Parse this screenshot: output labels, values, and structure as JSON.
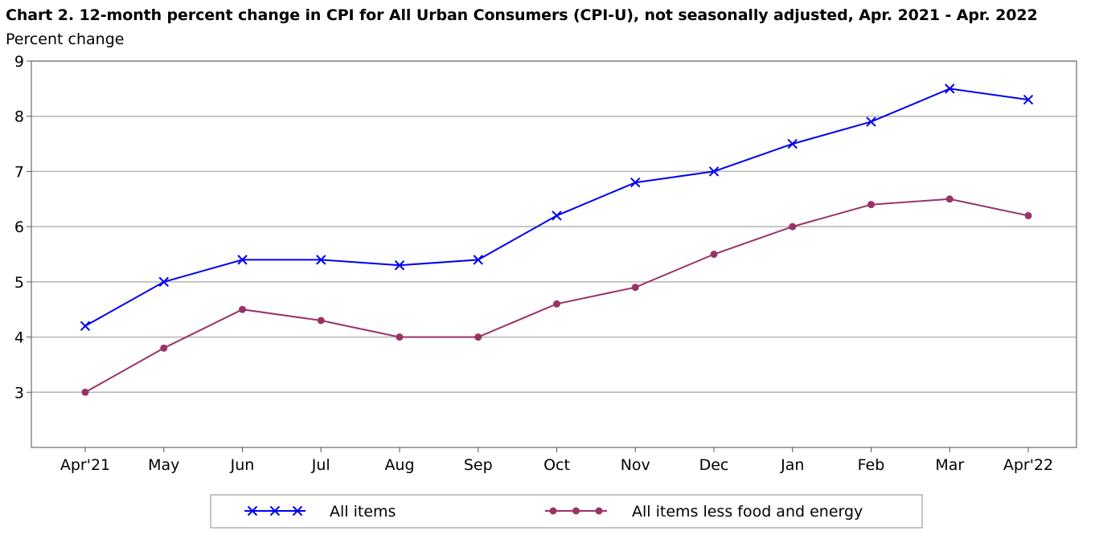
{
  "chart_data": {
    "type": "line",
    "title": "Chart 2. 12-month percent change in CPI for All Urban Consumers (CPI-U), not seasonally adjusted, Apr. 2021 - Apr. 2022",
    "ylabel": "Percent change",
    "xlabel": "",
    "categories": [
      "Apr'21",
      "May",
      "Jun",
      "Jul",
      "Aug",
      "Sep",
      "Oct",
      "Nov",
      "Dec",
      "Jan",
      "Feb",
      "Mar",
      "Apr'22"
    ],
    "ylim": [
      2,
      9
    ],
    "yticks": [
      3,
      4,
      5,
      6,
      7,
      8,
      9
    ],
    "grid": true,
    "legend_position": "bottom",
    "series": [
      {
        "name": "All items",
        "marker": "x",
        "color": "#0000ee",
        "values": [
          4.2,
          5.0,
          5.4,
          5.4,
          5.3,
          5.4,
          6.2,
          6.8,
          7.0,
          7.5,
          7.9,
          8.5,
          8.3
        ]
      },
      {
        "name": "All items less food and energy",
        "marker": "circle",
        "color": "#993366",
        "values": [
          3.0,
          3.8,
          4.5,
          4.3,
          4.0,
          4.0,
          4.6,
          4.9,
          5.5,
          6.0,
          6.4,
          6.5,
          6.2
        ]
      }
    ]
  }
}
